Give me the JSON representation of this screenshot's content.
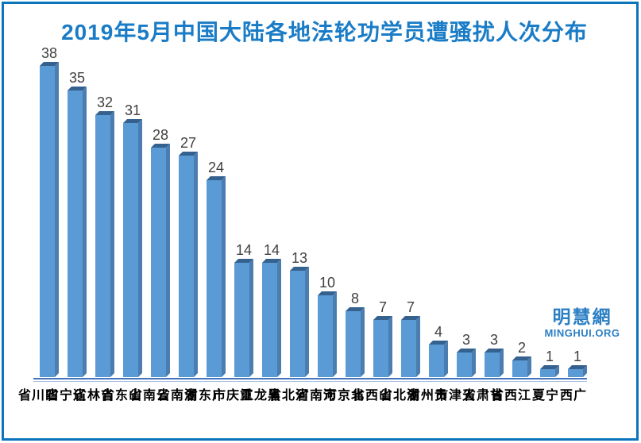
{
  "title": "2019年5月中国大陆各地法轮功学员遭骚扰人次分布",
  "branding": {
    "logo_cn": "明慧網",
    "logo_en": "MINGHUI.ORG"
  },
  "colors": {
    "title": "#1A7CC6",
    "frame_border": "#0B74BC",
    "bar_front": "#5B9BD5",
    "bar_top": "#35618E",
    "bar_side": "#4B7DB0",
    "axis_line": "#4575BE",
    "axis_line_light": "#A9C2E0",
    "value_label": "#404040",
    "category_label": "#000000",
    "logo": "#2B7FC4"
  },
  "chart_data": {
    "type": "bar",
    "style": "3d",
    "orientation": "vertical",
    "title": "2019年5月中国大陆各地法轮功学员遭骚扰人次分布",
    "categories": [
      "四川省",
      "辽宁省",
      "吉林省",
      "山东省",
      "云南省",
      "湖南省",
      "广东省",
      "重庆市",
      "黑龙江",
      "河北省",
      "河南省",
      "北京市",
      "山西省",
      "湖北省",
      "贵州省",
      "天津市",
      "甘肃省",
      "江西省",
      "宁夏",
      "广西"
    ],
    "values": [
      38,
      35,
      32,
      31,
      28,
      27,
      24,
      14,
      14,
      13,
      10,
      8,
      7,
      7,
      4,
      3,
      3,
      2,
      1,
      1
    ],
    "ylim": [
      0,
      38
    ],
    "grid": false,
    "legend": false,
    "data_labels": true,
    "xlabel": "",
    "ylabel": ""
  }
}
